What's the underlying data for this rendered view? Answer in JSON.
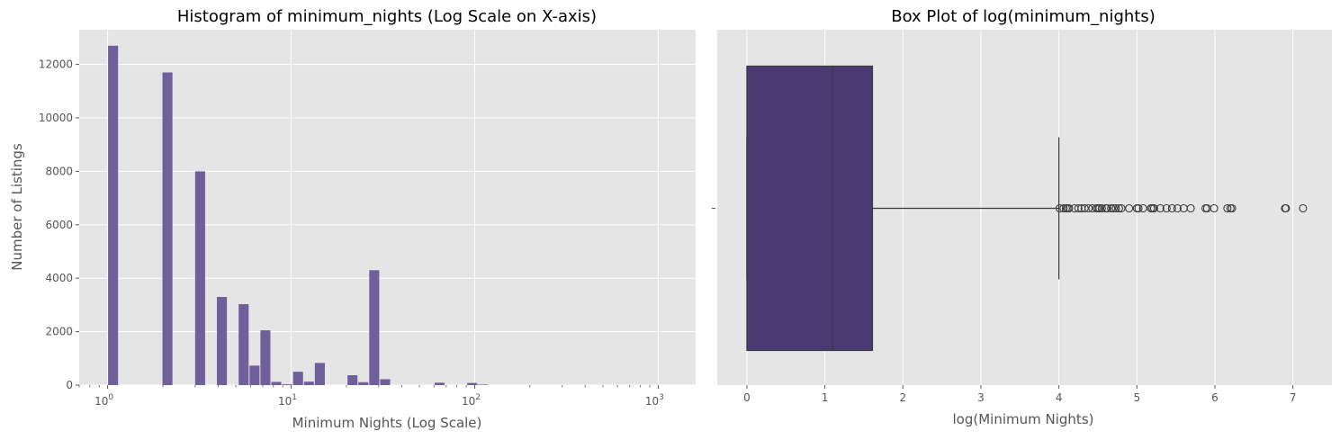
{
  "colors": {
    "panel_bg": "#e5e5e5",
    "grid": "#ffffff",
    "bar_fill": "#6f5f9a",
    "box_fill": "#4a3a74",
    "box_edge": "#3a3a3a",
    "text": "#555555"
  },
  "chart_data": [
    {
      "type": "bar",
      "title": "Histogram of minimum_nights (Log Scale on X-axis)",
      "xlabel": "Minimum Nights (Log Scale)",
      "ylabel": "Number of Listings",
      "x_scale": "log",
      "xlim": [
        0.7,
        1600
      ],
      "ylim": [
        0,
        13300
      ],
      "grid": true,
      "x_ticks": [
        {
          "base": "10",
          "exp": "0",
          "value": 1
        },
        {
          "base": "10",
          "exp": "1",
          "value": 10
        },
        {
          "base": "10",
          "exp": "2",
          "value": 100
        },
        {
          "base": "10",
          "exp": "3",
          "value": 1000
        }
      ],
      "y_ticks": [
        "0",
        "2000",
        "4000",
        "6000",
        "8000",
        "10000",
        "12000"
      ],
      "bin_edges_log10": [
        0.0,
        0.0593,
        0.1186,
        0.1779,
        0.2372,
        0.2965,
        0.3558,
        0.4151,
        0.4744,
        0.5337,
        0.593,
        0.6523,
        0.7116,
        0.7709,
        0.8302,
        0.8895,
        0.9488,
        1.0081,
        1.0674,
        1.1267,
        1.186,
        1.2453,
        1.3046,
        1.3639,
        1.4232,
        1.4825,
        1.5418,
        1.6011,
        1.6604,
        1.7197,
        1.779,
        1.8383,
        1.8976,
        1.9569,
        2.0162,
        2.0755,
        2.1348,
        2.1941,
        2.2534,
        2.3127,
        2.372,
        2.4313,
        2.4906,
        2.5499,
        2.6092,
        2.6685,
        2.7278,
        2.7871,
        2.8464,
        2.9057,
        2.965,
        3.0243
      ],
      "values": [
        12700,
        0,
        0,
        0,
        0,
        11700,
        0,
        0,
        8000,
        0,
        3300,
        0,
        3030,
        730,
        2050,
        120,
        30,
        500,
        130,
        830,
        0,
        0,
        370,
        110,
        4300,
        220,
        0,
        0,
        0,
        0,
        90,
        0,
        0,
        80,
        20,
        0,
        0,
        0,
        0,
        0,
        0,
        0,
        0,
        0,
        0,
        0,
        0,
        0,
        0,
        0,
        0
      ]
    },
    {
      "type": "box",
      "title": "Box Plot of log(minimum_nights)",
      "xlabel": "log(Minimum Nights)",
      "ylabel": "",
      "xlim": [
        -0.38,
        7.5
      ],
      "x_ticks": [
        "0",
        "1",
        "2",
        "3",
        "4",
        "5",
        "6",
        "7"
      ],
      "y_ticks": [
        ""
      ],
      "grid": true,
      "box": {
        "whisker_low": 0.0,
        "q1": 0.0,
        "median": 1.1,
        "q3": 1.61,
        "whisker_high": 4.0
      },
      "outliers": [
        4.01,
        4.06,
        4.09,
        4.11,
        4.13,
        4.2,
        4.25,
        4.29,
        4.33,
        4.38,
        4.43,
        4.48,
        4.5,
        4.52,
        4.55,
        4.6,
        4.62,
        4.67,
        4.7,
        4.73,
        4.77,
        4.8,
        4.9,
        5.0,
        5.02,
        5.08,
        5.18,
        5.2,
        5.22,
        5.3,
        5.38,
        5.45,
        5.52,
        5.6,
        5.69,
        5.88,
        5.9,
        5.99,
        6.16,
        6.2,
        6.22,
        6.9,
        6.91,
        7.13
      ]
    }
  ]
}
